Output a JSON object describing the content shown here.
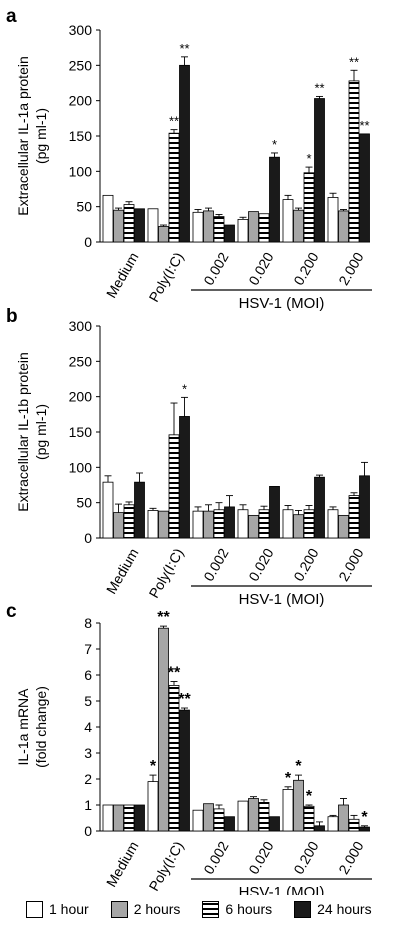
{
  "chart_data": [
    {
      "panel": "a",
      "type": "bar",
      "ylabel": [
        "Extracellular IL-1a protein",
        "(pg ml-1)"
      ],
      "ylim": [
        0,
        300
      ],
      "yticks": [
        0,
        50,
        100,
        150,
        200,
        250,
        300
      ],
      "categories": [
        "Medium",
        "Poly(I:C)",
        "0.002",
        "0.020",
        "0.200",
        "2.000"
      ],
      "group_label": "HSV-1 (MOI)",
      "series": [
        {
          "name": "1 hour",
          "values": [
            66,
            47,
            42,
            32,
            60,
            63
          ],
          "errors": [
            0,
            0,
            4,
            3,
            6,
            6
          ]
        },
        {
          "name": "2 hours",
          "values": [
            45,
            22,
            44,
            43,
            45,
            44
          ],
          "errors": [
            3,
            2,
            4,
            0,
            3,
            2
          ]
        },
        {
          "name": "6 hours",
          "values": [
            53,
            154,
            36,
            40,
            98,
            228
          ],
          "errors": [
            4,
            5,
            3,
            0,
            8,
            15
          ]
        },
        {
          "name": "24 hours",
          "values": [
            47,
            250,
            24,
            120,
            203,
            153
          ],
          "errors": [
            0,
            12,
            0,
            6,
            3,
            0
          ]
        }
      ],
      "annotations": [
        {
          "category": 1,
          "series": 2,
          "text": "**"
        },
        {
          "category": 1,
          "series": 3,
          "text": "**"
        },
        {
          "category": 3,
          "series": 3,
          "text": "*"
        },
        {
          "category": 4,
          "series": 2,
          "text": "*"
        },
        {
          "category": 4,
          "series": 3,
          "text": "**"
        },
        {
          "category": 5,
          "series": 2,
          "text": "**"
        },
        {
          "category": 5,
          "series": 3,
          "text": "**"
        }
      ]
    },
    {
      "panel": "b",
      "type": "bar",
      "ylabel": [
        "Extracellular IL-1b protein",
        "(pg ml-1)"
      ],
      "ylim": [
        0,
        300
      ],
      "yticks": [
        0,
        50,
        100,
        150,
        200,
        250,
        300
      ],
      "categories": [
        "Medium",
        "Poly(I:C)",
        "0.002",
        "0.020",
        "0.200",
        "2.000"
      ],
      "group_label": "HSV-1 (MOI)",
      "series": [
        {
          "name": "1 hour",
          "values": [
            79,
            39,
            38,
            40,
            40,
            40
          ],
          "errors": [
            9,
            3,
            6,
            7,
            6,
            4
          ]
        },
        {
          "name": "2 hours",
          "values": [
            36,
            38,
            38,
            32,
            33,
            32
          ],
          "errors": [
            12,
            0,
            9,
            0,
            6,
            0
          ]
        },
        {
          "name": "6 hours",
          "values": [
            47,
            146,
            40,
            40,
            40,
            60
          ],
          "errors": [
            4,
            45,
            10,
            5,
            6,
            4
          ]
        },
        {
          "name": "24 hours",
          "values": [
            79,
            172,
            44,
            73,
            86,
            88
          ],
          "errors": [
            13,
            27,
            16,
            0,
            3,
            19
          ]
        }
      ],
      "annotations": [
        {
          "category": 1,
          "series": 3,
          "text": "*"
        }
      ]
    },
    {
      "panel": "c",
      "type": "bar",
      "ylabel": [
        "IL-1a mRNA",
        "(fold change)"
      ],
      "ylim": [
        0,
        8
      ],
      "yticks": [
        0,
        1,
        2,
        3,
        4,
        5,
        6,
        7,
        8
      ],
      "categories": [
        "Medium",
        "Poly(I:C)",
        "0.002",
        "0.020",
        "0.200",
        "2.000"
      ],
      "group_label": "HSV-1 (MOI)",
      "series": [
        {
          "name": "1 hour",
          "values": [
            1.0,
            1.9,
            0.8,
            1.15,
            1.6,
            0.55
          ],
          "errors": [
            0,
            0.25,
            0,
            0,
            0.1,
            0.05
          ]
        },
        {
          "name": "2 hours",
          "values": [
            1.0,
            7.8,
            1.05,
            1.25,
            1.95,
            1.0
          ],
          "errors": [
            0,
            0.08,
            0,
            0.07,
            0.2,
            0.25
          ]
        },
        {
          "name": "6 hours",
          "values": [
            1.0,
            5.6,
            0.85,
            1.1,
            0.95,
            0.45
          ],
          "errors": [
            0,
            0.15,
            0.15,
            0.1,
            0.05,
            0.15
          ]
        },
        {
          "name": "24 hours",
          "values": [
            1.0,
            4.65,
            0.55,
            0.55,
            0.2,
            0.15
          ],
          "errors": [
            0,
            0.08,
            0,
            0,
            0.15,
            0.05
          ]
        }
      ],
      "annotations": [
        {
          "category": 1,
          "series": 0,
          "text": "*"
        },
        {
          "category": 1,
          "series": 1,
          "text": "**"
        },
        {
          "category": 1,
          "series": 2,
          "text": "**"
        },
        {
          "category": 1,
          "series": 3,
          "text": "**"
        },
        {
          "category": 4,
          "series": 0,
          "text": "*"
        },
        {
          "category": 4,
          "series": 1,
          "text": "*"
        },
        {
          "category": 4,
          "series": 2,
          "text": "*"
        },
        {
          "category": 5,
          "series": 3,
          "text": "*"
        }
      ]
    }
  ],
  "legend": [
    {
      "label": "1 hour",
      "style": "white"
    },
    {
      "label": "2 hours",
      "style": "gray"
    },
    {
      "label": "6 hours",
      "style": "hstripe"
    },
    {
      "label": "24 hours",
      "style": "black"
    }
  ],
  "colors": {
    "gray": "#a6a6a6",
    "black": "#1a1a1a",
    "white": "#ffffff"
  }
}
